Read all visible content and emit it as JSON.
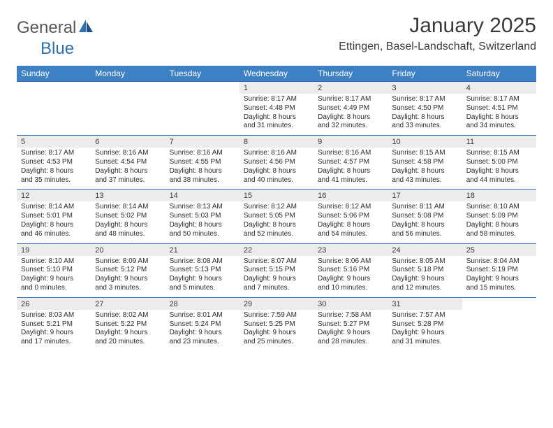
{
  "logo": {
    "text1": "General",
    "text2": "Blue"
  },
  "title": "January 2025",
  "location": "Ettingen, Basel-Landschaft, Switzerland",
  "colors": {
    "header_bg": "#3d80c3",
    "header_text": "#ffffff",
    "rule": "#2f6eaf",
    "daynum_bg": "#ececec",
    "text": "#2b2b2b",
    "logo_gray": "#595959",
    "logo_blue": "#2f6eaf"
  },
  "day_headers": [
    "Sunday",
    "Monday",
    "Tuesday",
    "Wednesday",
    "Thursday",
    "Friday",
    "Saturday"
  ],
  "weeks": [
    {
      "nums": [
        "",
        "",
        "",
        "1",
        "2",
        "3",
        "4"
      ],
      "infos": [
        "",
        "",
        "",
        "Sunrise: 8:17 AM\nSunset: 4:48 PM\nDaylight: 8 hours\nand 31 minutes.",
        "Sunrise: 8:17 AM\nSunset: 4:49 PM\nDaylight: 8 hours\nand 32 minutes.",
        "Sunrise: 8:17 AM\nSunset: 4:50 PM\nDaylight: 8 hours\nand 33 minutes.",
        "Sunrise: 8:17 AM\nSunset: 4:51 PM\nDaylight: 8 hours\nand 34 minutes."
      ]
    },
    {
      "nums": [
        "5",
        "6",
        "7",
        "8",
        "9",
        "10",
        "11"
      ],
      "infos": [
        "Sunrise: 8:17 AM\nSunset: 4:53 PM\nDaylight: 8 hours\nand 35 minutes.",
        "Sunrise: 8:16 AM\nSunset: 4:54 PM\nDaylight: 8 hours\nand 37 minutes.",
        "Sunrise: 8:16 AM\nSunset: 4:55 PM\nDaylight: 8 hours\nand 38 minutes.",
        "Sunrise: 8:16 AM\nSunset: 4:56 PM\nDaylight: 8 hours\nand 40 minutes.",
        "Sunrise: 8:16 AM\nSunset: 4:57 PM\nDaylight: 8 hours\nand 41 minutes.",
        "Sunrise: 8:15 AM\nSunset: 4:58 PM\nDaylight: 8 hours\nand 43 minutes.",
        "Sunrise: 8:15 AM\nSunset: 5:00 PM\nDaylight: 8 hours\nand 44 minutes."
      ]
    },
    {
      "nums": [
        "12",
        "13",
        "14",
        "15",
        "16",
        "17",
        "18"
      ],
      "infos": [
        "Sunrise: 8:14 AM\nSunset: 5:01 PM\nDaylight: 8 hours\nand 46 minutes.",
        "Sunrise: 8:14 AM\nSunset: 5:02 PM\nDaylight: 8 hours\nand 48 minutes.",
        "Sunrise: 8:13 AM\nSunset: 5:03 PM\nDaylight: 8 hours\nand 50 minutes.",
        "Sunrise: 8:12 AM\nSunset: 5:05 PM\nDaylight: 8 hours\nand 52 minutes.",
        "Sunrise: 8:12 AM\nSunset: 5:06 PM\nDaylight: 8 hours\nand 54 minutes.",
        "Sunrise: 8:11 AM\nSunset: 5:08 PM\nDaylight: 8 hours\nand 56 minutes.",
        "Sunrise: 8:10 AM\nSunset: 5:09 PM\nDaylight: 8 hours\nand 58 minutes."
      ]
    },
    {
      "nums": [
        "19",
        "20",
        "21",
        "22",
        "23",
        "24",
        "25"
      ],
      "infos": [
        "Sunrise: 8:10 AM\nSunset: 5:10 PM\nDaylight: 9 hours\nand 0 minutes.",
        "Sunrise: 8:09 AM\nSunset: 5:12 PM\nDaylight: 9 hours\nand 3 minutes.",
        "Sunrise: 8:08 AM\nSunset: 5:13 PM\nDaylight: 9 hours\nand 5 minutes.",
        "Sunrise: 8:07 AM\nSunset: 5:15 PM\nDaylight: 9 hours\nand 7 minutes.",
        "Sunrise: 8:06 AM\nSunset: 5:16 PM\nDaylight: 9 hours\nand 10 minutes.",
        "Sunrise: 8:05 AM\nSunset: 5:18 PM\nDaylight: 9 hours\nand 12 minutes.",
        "Sunrise: 8:04 AM\nSunset: 5:19 PM\nDaylight: 9 hours\nand 15 minutes."
      ]
    },
    {
      "nums": [
        "26",
        "27",
        "28",
        "29",
        "30",
        "31",
        ""
      ],
      "infos": [
        "Sunrise: 8:03 AM\nSunset: 5:21 PM\nDaylight: 9 hours\nand 17 minutes.",
        "Sunrise: 8:02 AM\nSunset: 5:22 PM\nDaylight: 9 hours\nand 20 minutes.",
        "Sunrise: 8:01 AM\nSunset: 5:24 PM\nDaylight: 9 hours\nand 23 minutes.",
        "Sunrise: 7:59 AM\nSunset: 5:25 PM\nDaylight: 9 hours\nand 25 minutes.",
        "Sunrise: 7:58 AM\nSunset: 5:27 PM\nDaylight: 9 hours\nand 28 minutes.",
        "Sunrise: 7:57 AM\nSunset: 5:28 PM\nDaylight: 9 hours\nand 31 minutes.",
        ""
      ]
    }
  ]
}
